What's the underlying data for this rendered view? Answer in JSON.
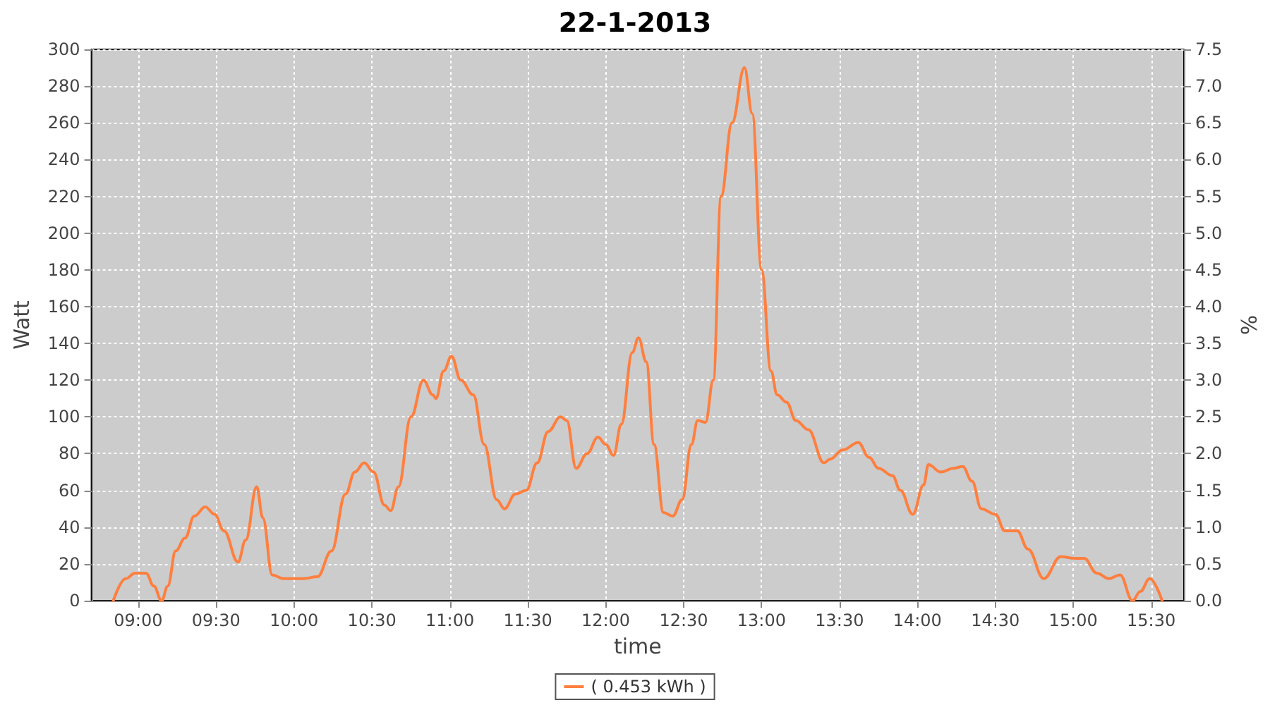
{
  "chart_data": {
    "type": "line",
    "title": "22-1-2013",
    "xlabel": "time",
    "ylabel": "Watt",
    "y2label": "%",
    "x": [
      8.84,
      8.92,
      8.98,
      9.05,
      9.1,
      9.15,
      9.19,
      9.24,
      9.3,
      9.36,
      9.43,
      9.49,
      9.55,
      9.64,
      9.69,
      9.76,
      9.8,
      9.86,
      9.93,
      10.06,
      10.15,
      10.24,
      10.33,
      10.39,
      10.45,
      10.51,
      10.58,
      10.62,
      10.67,
      10.75,
      10.83,
      10.89,
      10.91,
      10.96,
      11.01,
      11.07,
      11.15,
      11.22,
      11.3,
      11.35,
      11.42,
      11.49,
      11.56,
      11.63,
      11.71,
      11.75,
      11.81,
      11.88,
      11.95,
      12.0,
      12.05,
      12.1,
      12.17,
      12.21,
      12.26,
      12.31,
      12.37,
      12.43,
      12.49,
      12.55,
      12.59,
      12.64,
      12.69,
      12.74,
      12.81,
      12.89,
      12.94,
      13.0,
      13.06,
      13.1,
      13.16,
      13.22,
      13.3,
      13.4,
      13.44,
      13.52,
      13.62,
      13.69,
      13.75,
      13.84,
      13.89,
      13.97,
      14.04,
      14.07,
      14.15,
      14.23,
      14.29,
      14.35,
      14.41,
      14.5,
      14.56,
      14.64,
      14.71,
      14.81,
      14.92,
      15.01,
      15.07,
      15.15,
      15.23,
      15.3,
      15.38,
      15.43,
      15.49,
      15.57
    ],
    "series": [
      {
        "name": "( 0.453 kWh )",
        "color": "#ff7f3f",
        "values": [
          0,
          12,
          15,
          15,
          8,
          0,
          8,
          27,
          34,
          46,
          51,
          47,
          38,
          21,
          33,
          62,
          45,
          14,
          12,
          12,
          13,
          27,
          58,
          70,
          75,
          70,
          52,
          49,
          62,
          100,
          120,
          112,
          110,
          125,
          133,
          120,
          112,
          85,
          55,
          50,
          58,
          60,
          75,
          92,
          100,
          98,
          72,
          80,
          89,
          85,
          79,
          96,
          135,
          143,
          130,
          85,
          48,
          46,
          55,
          85,
          98,
          97,
          120,
          220,
          260,
          290,
          265,
          180,
          125,
          112,
          108,
          98,
          93,
          75,
          77,
          82,
          86,
          78,
          72,
          68,
          60,
          47,
          63,
          74,
          70,
          72,
          73,
          65,
          50,
          47,
          38,
          38,
          28,
          12,
          24,
          23,
          23,
          15,
          12,
          14,
          0,
          5,
          12,
          0
        ]
      }
    ],
    "xlim": [
      8.7,
      15.71
    ],
    "xticks": [
      {
        "value": 9,
        "label": "09:00"
      },
      {
        "value": 9.5,
        "label": "09:30"
      },
      {
        "value": 10,
        "label": "10:00"
      },
      {
        "value": 10.5,
        "label": "10:30"
      },
      {
        "value": 11,
        "label": "11:00"
      },
      {
        "value": 11.5,
        "label": "11:30"
      },
      {
        "value": 12,
        "label": "12:00"
      },
      {
        "value": 12.5,
        "label": "12:30"
      },
      {
        "value": 13,
        "label": "13:00"
      },
      {
        "value": 13.5,
        "label": "13:30"
      },
      {
        "value": 14,
        "label": "14:00"
      },
      {
        "value": 14.5,
        "label": "14:30"
      },
      {
        "value": 15,
        "label": "15:00"
      },
      {
        "value": 15.5,
        "label": "15:30"
      }
    ],
    "ylim": [
      0,
      300
    ],
    "yticks": [
      0,
      20,
      40,
      60,
      80,
      100,
      120,
      140,
      160,
      180,
      200,
      220,
      240,
      260,
      280,
      300
    ],
    "y2lim": [
      0,
      7.5
    ],
    "y2ticks": [
      {
        "value": 0,
        "label": "0.0"
      },
      {
        "value": 0.5,
        "label": "0.5"
      },
      {
        "value": 1,
        "label": "1.0"
      },
      {
        "value": 1.5,
        "label": "1.5"
      },
      {
        "value": 2,
        "label": "2.0"
      },
      {
        "value": 2.5,
        "label": "2.5"
      },
      {
        "value": 3,
        "label": "3.0"
      },
      {
        "value": 3.5,
        "label": "3.5"
      },
      {
        "value": 4,
        "label": "4.0"
      },
      {
        "value": 4.5,
        "label": "4.5"
      },
      {
        "value": 5,
        "label": "5.0"
      },
      {
        "value": 5.5,
        "label": "5.5"
      },
      {
        "value": 6,
        "label": "6.0"
      },
      {
        "value": 6.5,
        "label": "6.5"
      },
      {
        "value": 7,
        "label": "7.0"
      },
      {
        "value": 7.5,
        "label": "7.5"
      }
    ],
    "grid": true,
    "legend": "bottom",
    "marker": "none",
    "line_style": "solid"
  }
}
